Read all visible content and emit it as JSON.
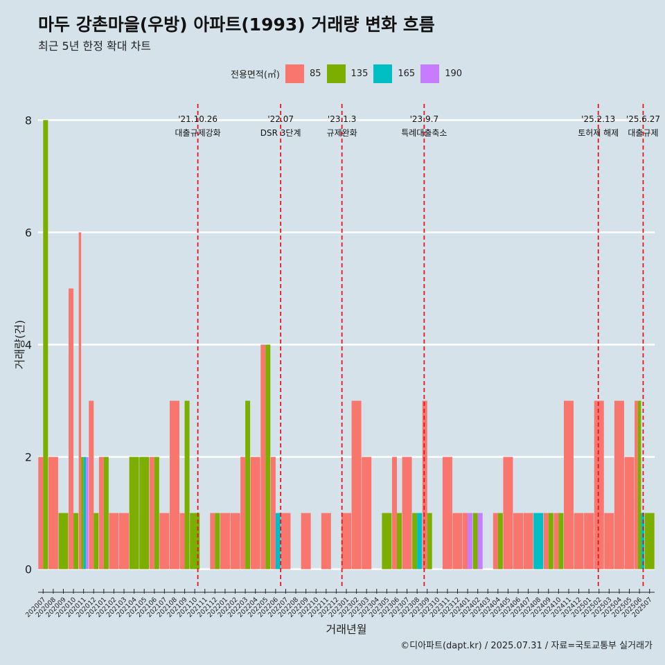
{
  "title": "마두 강촌마을(우방) 아파트(1993) 거래량 변화 흐름",
  "subtitle": "최근 5년 한정 확대 차트",
  "caption": "©디아파트(dapt.kr) / 2025.07.31 / 자료=국토교통부 실거래가",
  "legend": {
    "title": "전용면적(㎡)",
    "items": [
      {
        "label": "85",
        "color": "#f8766d"
      },
      {
        "label": "135",
        "color": "#7cae00"
      },
      {
        "label": "165",
        "color": "#00bfc4"
      },
      {
        "label": "190",
        "color": "#c77cff"
      }
    ]
  },
  "chart_data": {
    "type": "bar",
    "xlabel": "거래년월",
    "ylabel": "거래량(건)",
    "ylim": [
      -0.35,
      8.35
    ],
    "yticks": [
      0,
      2,
      4,
      6,
      8
    ],
    "grid": true,
    "months": [
      "202007",
      "202008",
      "202009",
      "202010",
      "202011",
      "202012",
      "202101",
      "202102",
      "202103",
      "202104",
      "202105",
      "202106",
      "202107",
      "202108",
      "202109",
      "202110",
      "202111",
      "202112",
      "202201",
      "202202",
      "202203",
      "202204",
      "202205",
      "202206",
      "202207",
      "202208",
      "202209",
      "202210",
      "202211",
      "202212",
      "202301",
      "202302",
      "202303",
      "202304",
      "202305",
      "202306",
      "202307",
      "202308",
      "202309",
      "202310",
      "202311",
      "202312",
      "202401",
      "202402",
      "202403",
      "202404",
      "202405",
      "202406",
      "202407",
      "202408",
      "202409",
      "202410",
      "202411",
      "202412",
      "202501",
      "202502",
      "202503",
      "202504",
      "202505",
      "202506",
      "202507"
    ],
    "tick_labels": [
      "202007",
      "202008",
      "202009",
      "202010",
      "202011",
      "202012",
      "202101",
      "202102",
      "202103",
      "202104",
      "202105",
      "202106",
      "202107",
      "202108",
      "202109",
      "202110",
      "202111",
      "202112",
      "202201",
      "202202",
      "202203",
      "202204",
      "202205",
      "202206",
      "202207",
      "202208",
      "202209",
      "202210",
      "202211",
      "202212",
      "202301",
      "202302",
      "202303",
      "202304",
      "202305",
      "202306",
      "202307",
      "202308",
      "202309",
      "202310",
      "202311",
      "202312",
      "202401",
      "202402",
      "202403",
      "202404",
      "202405",
      "202406",
      "202407",
      "202408",
      "202409",
      "202410",
      "202411",
      "202412",
      "202501",
      "202502",
      "202503",
      "202504",
      "202505",
      "202506",
      "202507"
    ],
    "bars": [
      {
        "month": "202007",
        "values": {
          "85": 2,
          "135": 8
        }
      },
      {
        "month": "202008",
        "values": {
          "85": 2
        }
      },
      {
        "month": "202009",
        "values": {
          "135": 1
        }
      },
      {
        "month": "202010",
        "values": {
          "85": 5,
          "135": 1
        }
      },
      {
        "month": "202011",
        "values": {
          "85": 6,
          "135": 2,
          "165": 2,
          "190": 2
        }
      },
      {
        "month": "202012",
        "values": {
          "85": 3,
          "135": 1
        }
      },
      {
        "month": "202101",
        "values": {
          "85": 2,
          "135": 2
        }
      },
      {
        "month": "202102",
        "values": {
          "85": 1
        }
      },
      {
        "month": "202103",
        "values": {
          "85": 1
        }
      },
      {
        "month": "202104",
        "values": {
          "135": 2
        }
      },
      {
        "month": "202105",
        "values": {
          "135": 2
        }
      },
      {
        "month": "202106",
        "values": {
          "85": 2,
          "135": 2
        }
      },
      {
        "month": "202107",
        "values": {
          "85": 1
        }
      },
      {
        "month": "202108",
        "values": {
          "85": 3
        }
      },
      {
        "month": "202109",
        "values": {
          "85": 1,
          "135": 3
        }
      },
      {
        "month": "202110",
        "values": {
          "135": 1
        }
      },
      {
        "month": "202112",
        "values": {
          "85": 1,
          "135": 1
        }
      },
      {
        "month": "202201",
        "values": {
          "85": 1
        }
      },
      {
        "month": "202202",
        "values": {
          "85": 1
        }
      },
      {
        "month": "202203",
        "values": {
          "85": 2,
          "135": 3
        }
      },
      {
        "month": "202204",
        "values": {
          "85": 2
        }
      },
      {
        "month": "202205",
        "values": {
          "85": 4,
          "135": 4
        }
      },
      {
        "month": "202206",
        "values": {
          "85": 2,
          "165": 1
        }
      },
      {
        "month": "202207",
        "values": {
          "85": 1
        }
      },
      {
        "month": "202209",
        "values": {
          "85": 1
        }
      },
      {
        "month": "202211",
        "values": {
          "85": 1
        }
      },
      {
        "month": "202301",
        "values": {
          "85": 1
        }
      },
      {
        "month": "202302",
        "values": {
          "85": 3
        }
      },
      {
        "month": "202303",
        "values": {
          "85": 2
        }
      },
      {
        "month": "202305",
        "values": {
          "135": 1
        }
      },
      {
        "month": "202306",
        "values": {
          "85": 2,
          "135": 1
        }
      },
      {
        "month": "202307",
        "values": {
          "85": 2
        }
      },
      {
        "month": "202308",
        "values": {
          "135": 1,
          "165": 1
        }
      },
      {
        "month": "202309",
        "values": {
          "85": 3,
          "135": 1
        }
      },
      {
        "month": "202311",
        "values": {
          "85": 2
        }
      },
      {
        "month": "202312",
        "values": {
          "85": 1
        }
      },
      {
        "month": "202401",
        "values": {
          "85": 1,
          "190": 1
        }
      },
      {
        "month": "202402",
        "values": {
          "135": 1,
          "190": 1
        }
      },
      {
        "month": "202404",
        "values": {
          "85": 1,
          "135": 1
        }
      },
      {
        "month": "202405",
        "values": {
          "85": 2
        }
      },
      {
        "month": "202406",
        "values": {
          "85": 1
        }
      },
      {
        "month": "202407",
        "values": {
          "85": 1
        }
      },
      {
        "month": "202408",
        "values": {
          "165": 1
        }
      },
      {
        "month": "202409",
        "values": {
          "85": 1,
          "135": 1
        }
      },
      {
        "month": "202410",
        "values": {
          "85": 1,
          "135": 1
        }
      },
      {
        "month": "202411",
        "values": {
          "85": 3
        }
      },
      {
        "month": "202412",
        "values": {
          "85": 1
        }
      },
      {
        "month": "202501",
        "values": {
          "85": 1
        }
      },
      {
        "month": "202502",
        "values": {
          "85": 3
        }
      },
      {
        "month": "202503",
        "values": {
          "85": 1
        }
      },
      {
        "month": "202504",
        "values": {
          "85": 3
        }
      },
      {
        "month": "202505",
        "values": {
          "85": 2
        }
      },
      {
        "month": "202506",
        "values": {
          "85": 3,
          "135": 3,
          "165": 1
        }
      },
      {
        "month": "202507",
        "values": {
          "135": 1
        }
      }
    ],
    "annotations": [
      {
        "date": "2021-10-26",
        "line1": "'21.10.26",
        "line2": "대출규제강화"
      },
      {
        "date": "2022-07-01",
        "line1": "'22.07",
        "line2": "DSR 3단계"
      },
      {
        "date": "2023-01-03",
        "line1": "'23.1.3",
        "line2": "규제완화"
      },
      {
        "date": "2023-09-07",
        "line1": "'23.9.7",
        "line2": "특례대출축소"
      },
      {
        "date": "2025-02-13",
        "line1": "'25.2.13",
        "line2": "토허제 해제"
      },
      {
        "date": "2025-06-27",
        "line1": "'25.6.27",
        "line2": "대출규제"
      }
    ]
  }
}
